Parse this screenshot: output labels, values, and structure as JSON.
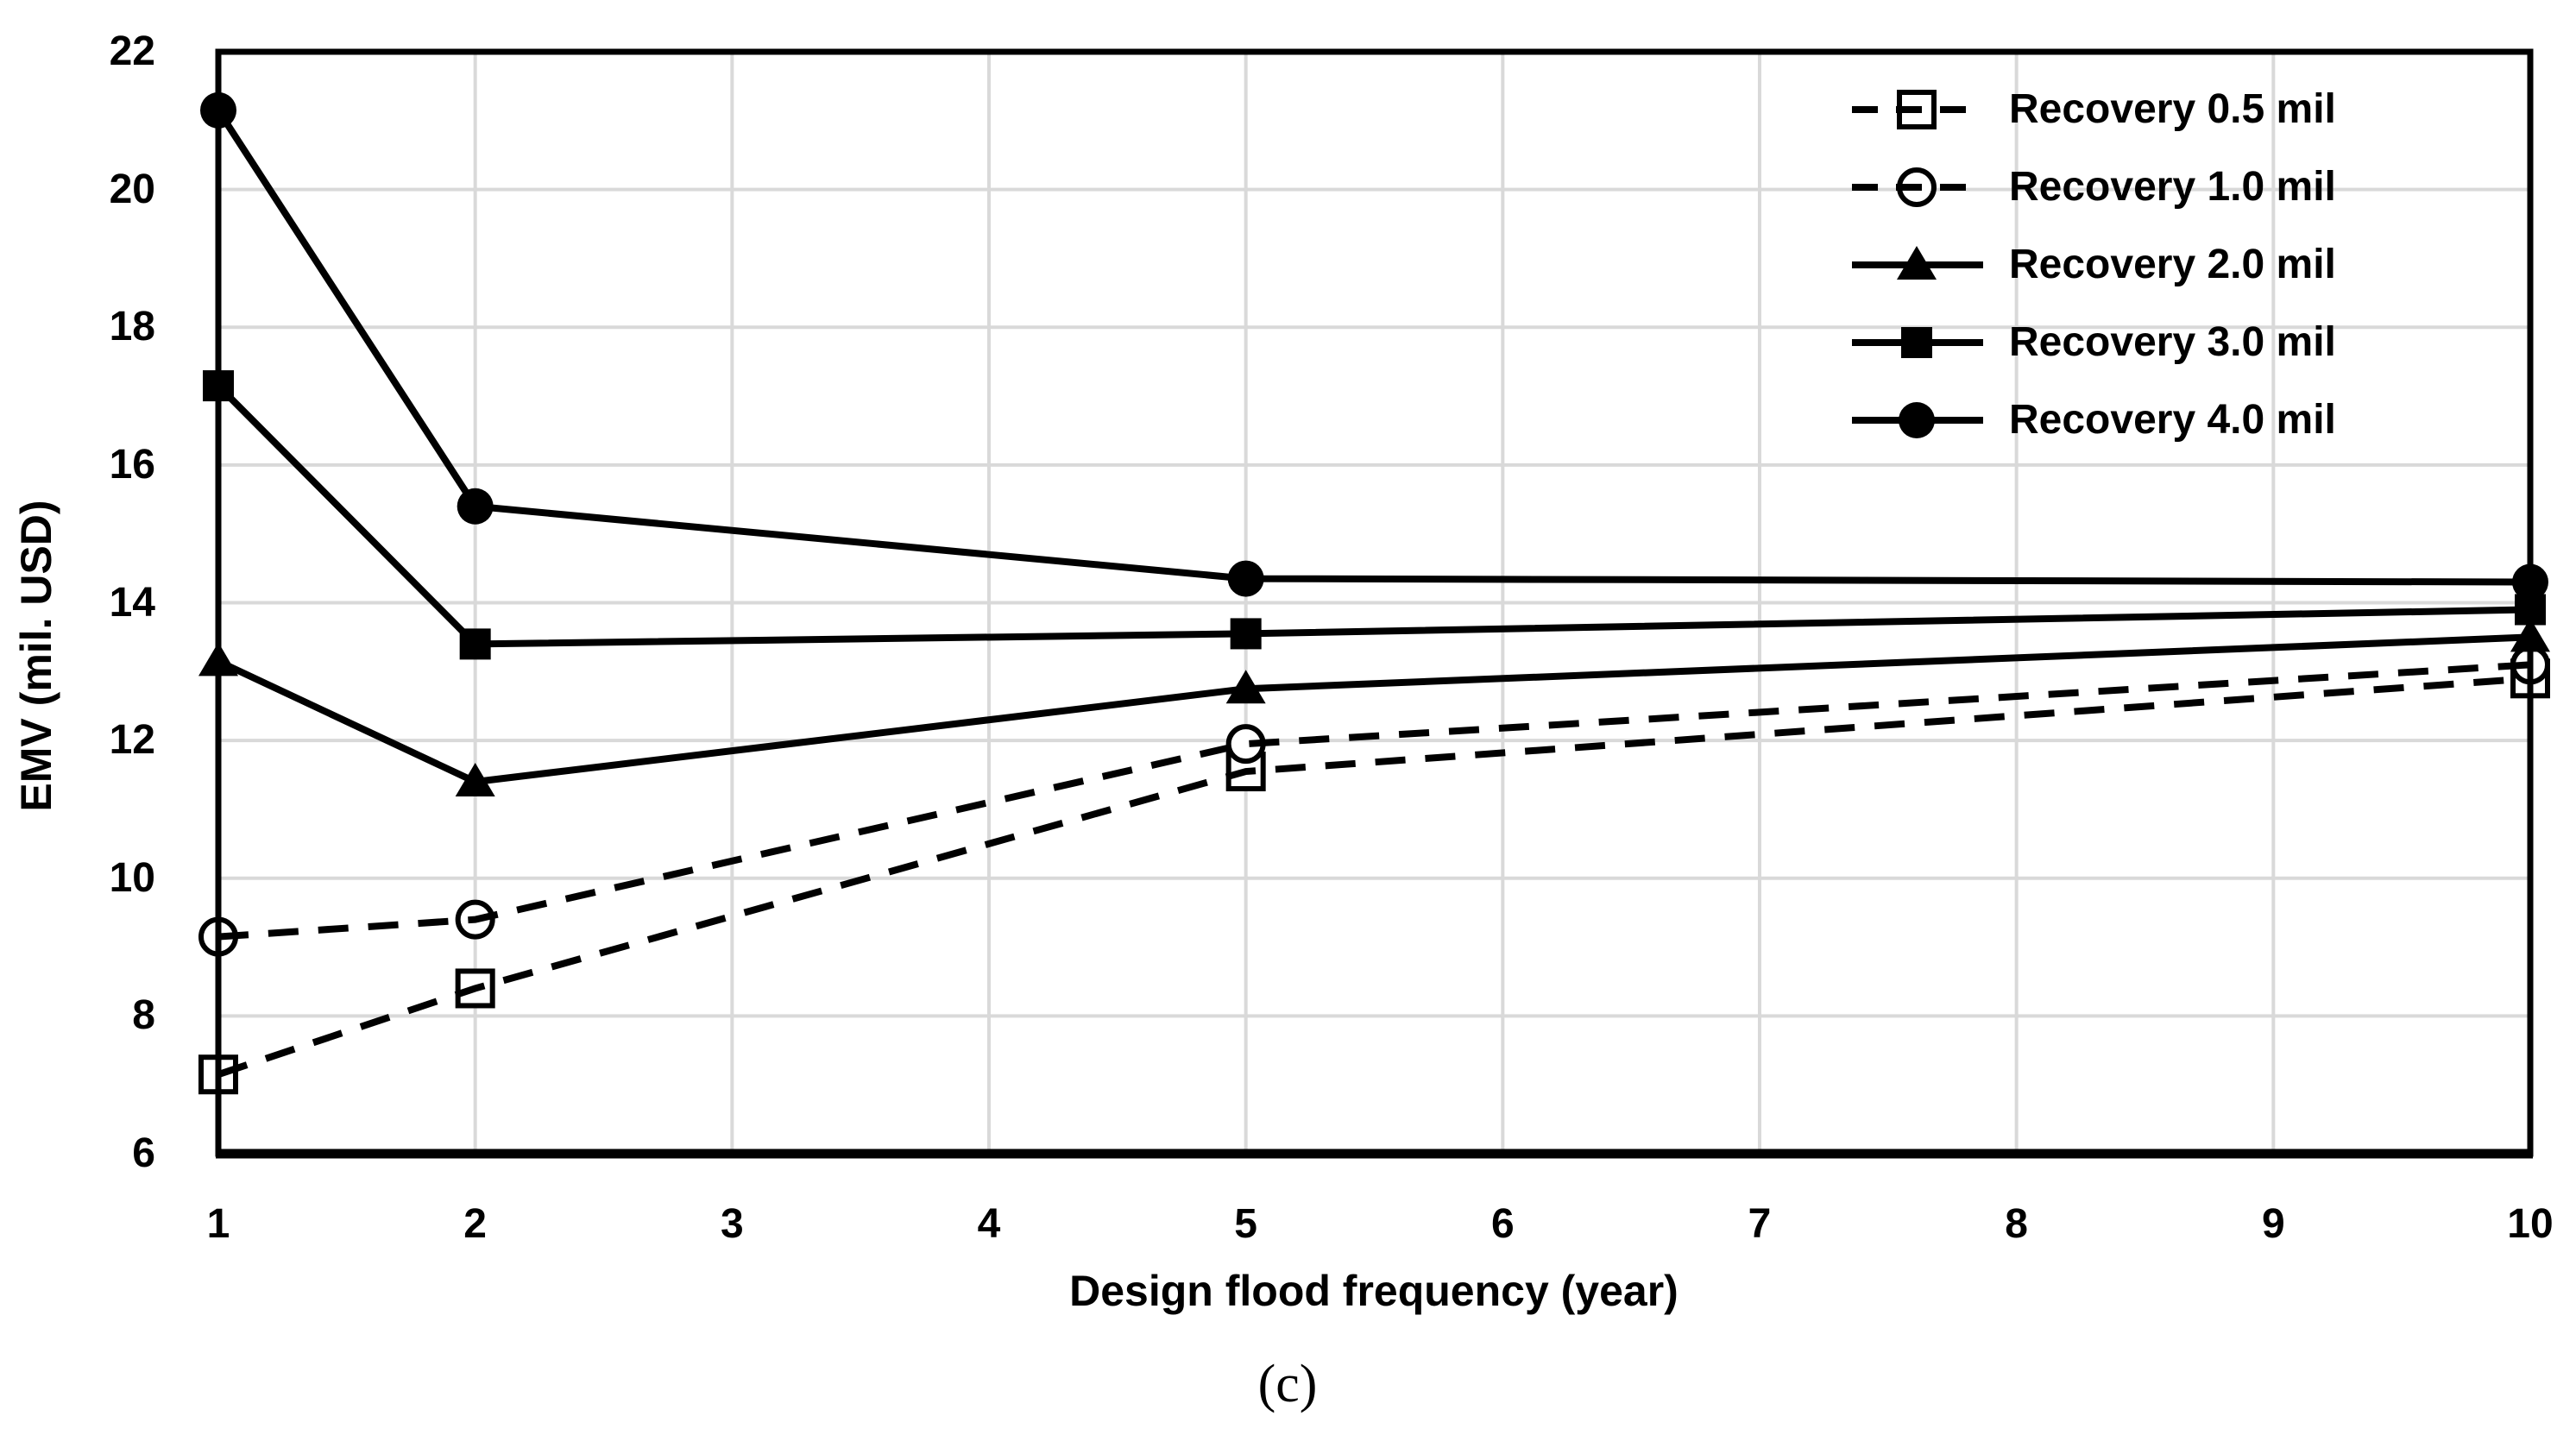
{
  "figure": {
    "caption": "(c)"
  },
  "chart_data": {
    "type": "line",
    "x": [
      1,
      2,
      5,
      10
    ],
    "series": [
      {
        "name": "Recovery 0.5 mil",
        "marker": "open-square",
        "line": "dashed",
        "values": [
          7.15,
          8.4,
          11.55,
          12.9
        ]
      },
      {
        "name": "Recovery 1.0 mil",
        "marker": "open-circle",
        "line": "dashed",
        "values": [
          9.15,
          9.4,
          11.95,
          13.1
        ]
      },
      {
        "name": "Recovery 2.0 mil",
        "marker": "filled-triangle",
        "line": "solid",
        "values": [
          13.15,
          11.4,
          12.75,
          13.5
        ]
      },
      {
        "name": "Recovery 3.0 mil",
        "marker": "filled-square",
        "line": "solid",
        "values": [
          17.15,
          13.4,
          13.55,
          13.9
        ]
      },
      {
        "name": "Recovery 4.0 mil",
        "marker": "filled-circle",
        "line": "solid",
        "values": [
          21.15,
          15.4,
          14.35,
          14.3
        ]
      }
    ],
    "xlabel": "Design flood frequency (year)",
    "ylabel": "EMV (mil. USD)",
    "x_ticks": [
      1,
      2,
      3,
      4,
      5,
      6,
      7,
      8,
      9,
      10
    ],
    "y_ticks": [
      6,
      8,
      10,
      12,
      14,
      16,
      18,
      20,
      22
    ],
    "xlim": [
      1,
      10
    ],
    "ylim": [
      6,
      22
    ],
    "grid": true,
    "legend_position": "top-right",
    "colors": {
      "series": "#000000",
      "gridline": "#d9d9d9",
      "background": "#ffffff"
    }
  }
}
